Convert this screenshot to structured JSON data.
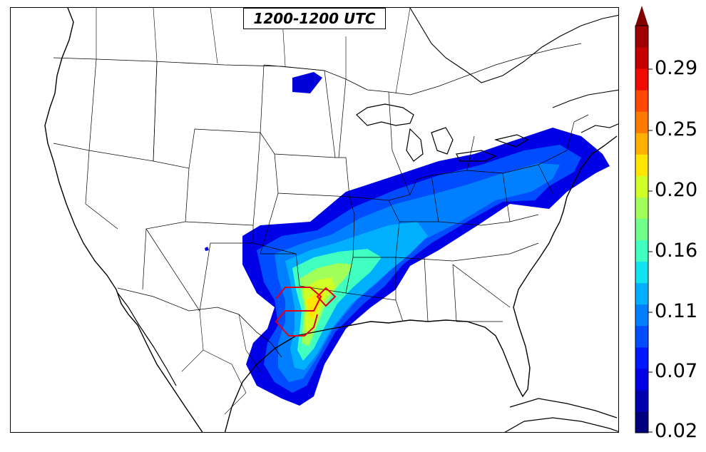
{
  "map": {
    "title": "1200-1200 UTC",
    "region": "United States",
    "field_colormap": "jet",
    "outline_color": "#e0001a"
  },
  "colorbar": {
    "tick_labels": [
      "0.02",
      "0.07",
      "0.11",
      "0.16",
      "0.20",
      "0.25",
      "0.29"
    ],
    "extend": "max",
    "colors": [
      "#00007f",
      "#0000b0",
      "#0000e6",
      "#0018ff",
      "#004cff",
      "#0080ff",
      "#00b0ff",
      "#10e4f0",
      "#40ffc0",
      "#70ff8c",
      "#a0ff58",
      "#d0ff26",
      "#ffe600",
      "#ffb000",
      "#ff7a00",
      "#ff4800",
      "#f00a00",
      "#c40000",
      "#a00000"
    ],
    "extend_color": "#800000"
  }
}
